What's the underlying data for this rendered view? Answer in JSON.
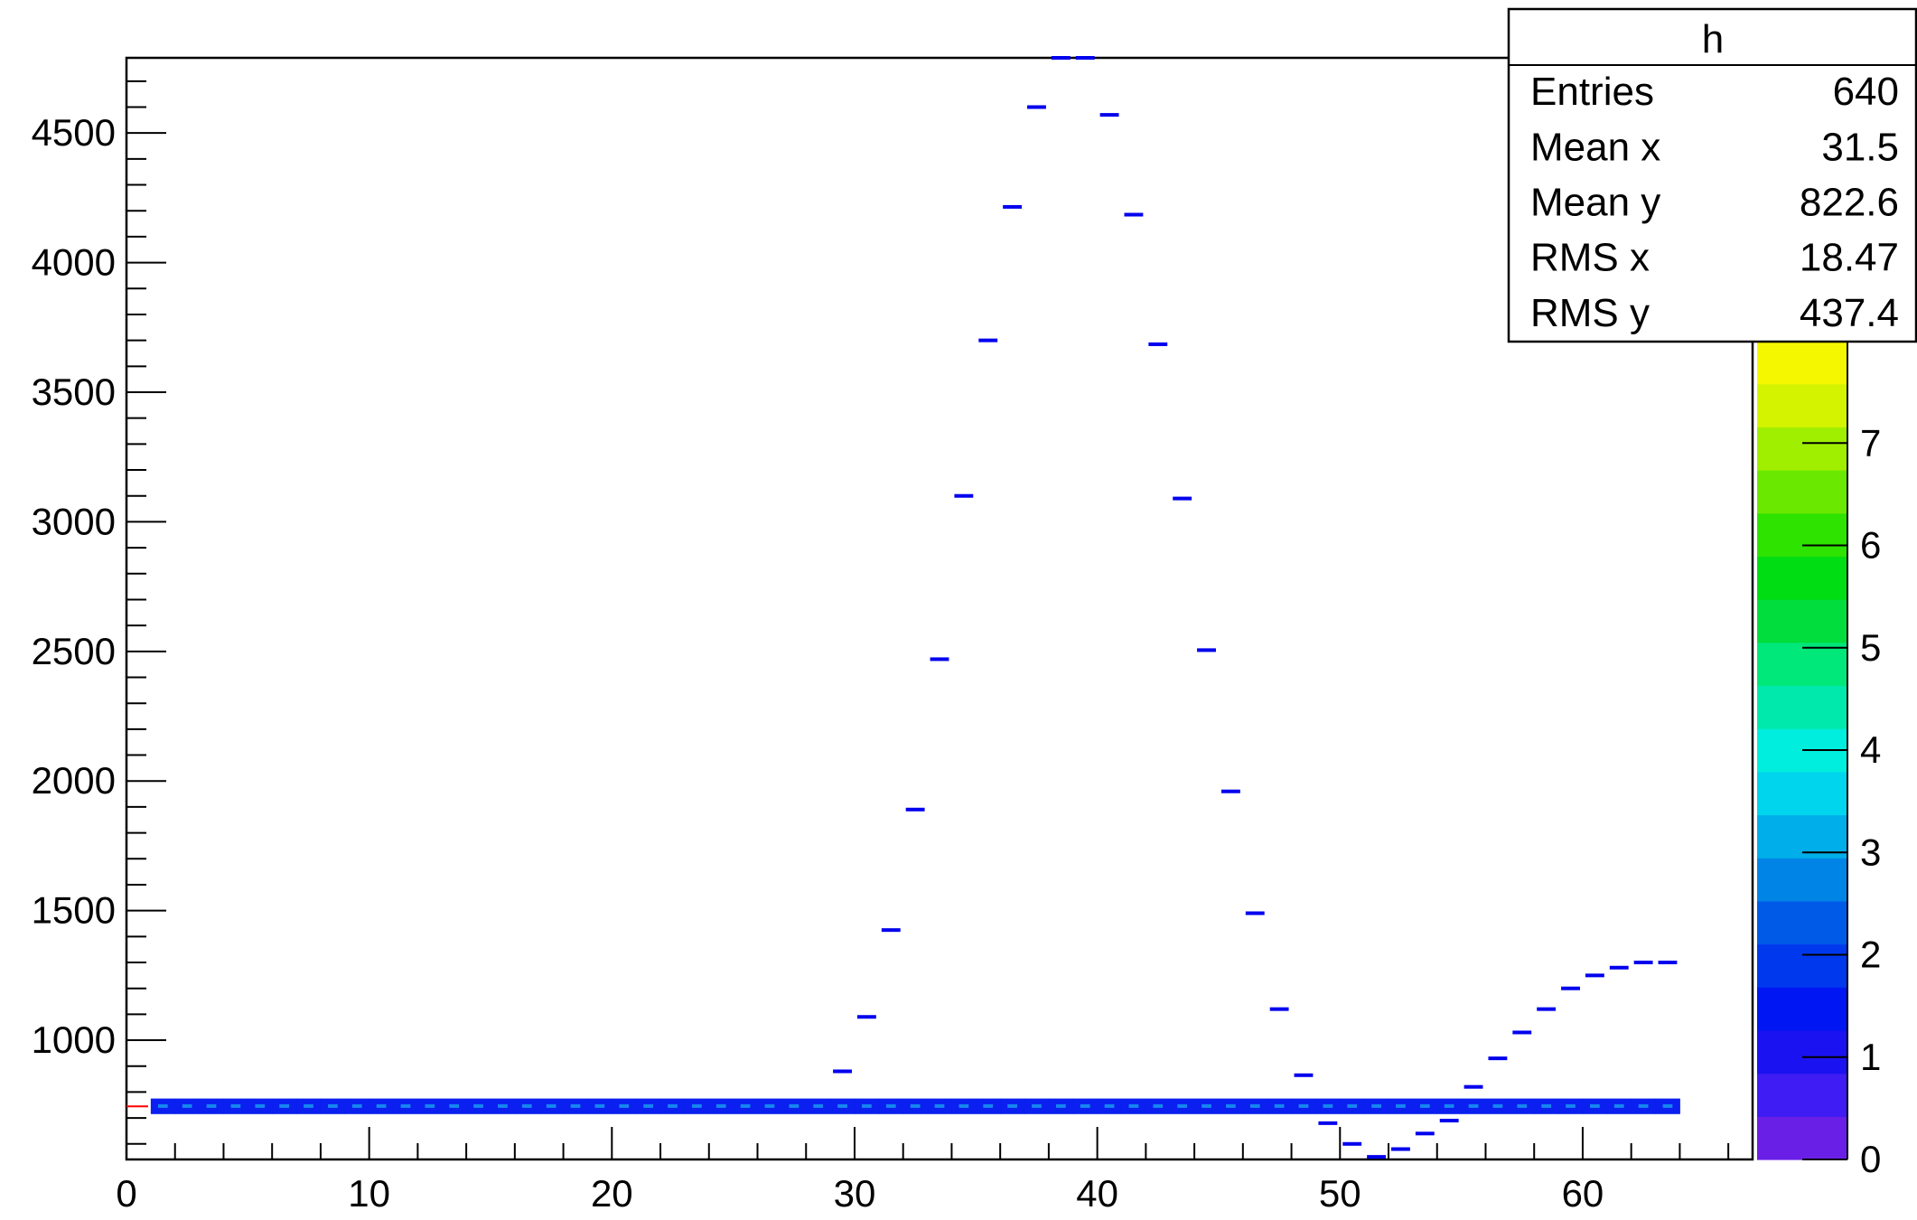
{
  "chart_data": {
    "type": "heatmap",
    "title": "",
    "xlabel": "",
    "ylabel": "",
    "xlim": [
      0,
      67
    ],
    "ylim": [
      540,
      4790
    ],
    "x_ticks": [
      0,
      10,
      20,
      30,
      40,
      50,
      60
    ],
    "y_ticks": [
      1000,
      1500,
      2000,
      2500,
      3000,
      3500,
      4000,
      4500
    ],
    "grid": false,
    "colorbar": {
      "range": [
        0,
        8
      ],
      "ticks": [
        0,
        1,
        2,
        3,
        4,
        5,
        6,
        7
      ],
      "palette": [
        "#6a1fe6",
        "#3e1cf3",
        "#1a12f0",
        "#0016f2",
        "#0038ee",
        "#005ae8",
        "#0085e6",
        "#00aeea",
        "#00d5ee",
        "#00eedd",
        "#00e9ad",
        "#00e77a",
        "#00dd3d",
        "#00dd12",
        "#2ee300",
        "#6be800",
        "#a0ee00",
        "#d4f300",
        "#f5f700"
      ]
    },
    "stats_box": {
      "title": "h",
      "rows": [
        {
          "label": "Entries",
          "value": "640"
        },
        {
          "label": "Mean x",
          "value": "31.5"
        },
        {
          "label": "Mean y",
          "value": "822.6"
        },
        {
          "label": "RMS x",
          "value": "18.47"
        },
        {
          "label": "RMS y",
          "value": "437.4"
        }
      ]
    },
    "series": [
      {
        "x": [
          29.5,
          30.5,
          31.5,
          32.5,
          33.5,
          34.5,
          35.5,
          36.5,
          37.5,
          38.5,
          39.5,
          40.5,
          41.5,
          42.5,
          43.5,
          44.5,
          45.5,
          46.5,
          47.5,
          48.5,
          49.5,
          50.5,
          51.5,
          52.5,
          53.5,
          54.5,
          55.5,
          56.5,
          57.5,
          58.5,
          59.5,
          60.5,
          61.5,
          62.5,
          63.5
        ],
        "y": [
          880,
          1090,
          1425,
          1890,
          2470,
          3100,
          3700,
          4215,
          4600,
          4790,
          4790,
          4570,
          4185,
          3685,
          3090,
          2505,
          1960,
          1490,
          1120,
          865,
          680,
          600,
          550,
          580,
          640,
          690,
          820,
          930,
          1030,
          1120,
          1200,
          1250,
          1280,
          1300,
          1300
        ],
        "z": [
          1,
          1,
          1,
          1,
          1,
          1,
          1,
          1,
          1,
          1,
          1,
          1,
          1,
          1,
          1,
          1,
          1,
          1,
          1,
          1,
          1,
          1,
          1,
          1,
          1,
          1,
          1,
          1,
          1,
          1,
          1,
          1,
          1,
          1,
          1
        ]
      }
    ],
    "band": {
      "x_range": [
        1,
        64
      ],
      "y_center": 745,
      "y_halfwidth": 30,
      "level": 1.5
    },
    "colors": {
      "marker": "#0000ee",
      "band": "#0a1ff0",
      "band_light": "#19b4ee",
      "axis": "#000000",
      "reference_line": "#ff0000"
    }
  }
}
